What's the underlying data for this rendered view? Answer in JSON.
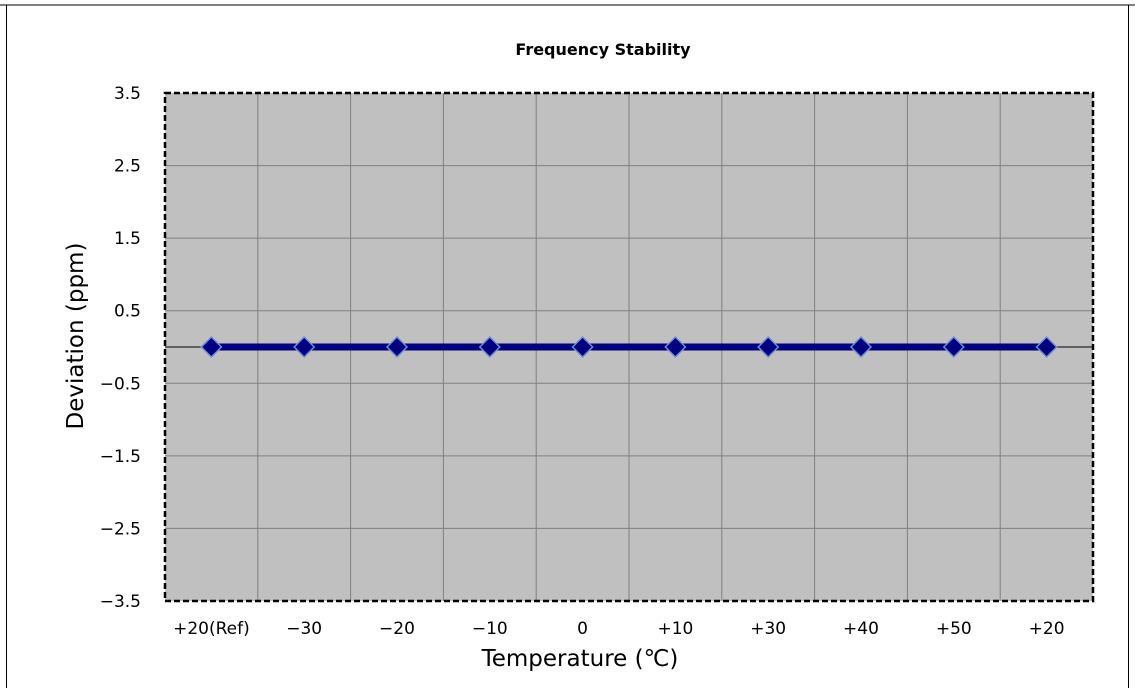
{
  "chart_data": {
    "type": "line",
    "title": "Frequency Stability",
    "xlabel": "Temperature (℃)",
    "ylabel": "Deviation (ppm)",
    "categories": [
      "+20(Ref)",
      "−30",
      "−20",
      "−10",
      "0",
      "+10",
      "+30",
      "+40",
      "+50",
      "+20"
    ],
    "series": [
      {
        "values": [
          0,
          0,
          0,
          0,
          0,
          0,
          0,
          0,
          0,
          0
        ]
      }
    ],
    "yticks": [
      "3.5",
      "2.5",
      "1.5",
      "0.5",
      "−0.5",
      "−1.5",
      "−2.5",
      "−3.5"
    ],
    "ylim": [
      -3.5,
      3.5
    ],
    "grid": true,
    "colors": {
      "series": "#000080",
      "plot_background": "#c0c0c0",
      "gridline": "#808080",
      "zero_line": "#000000"
    }
  }
}
